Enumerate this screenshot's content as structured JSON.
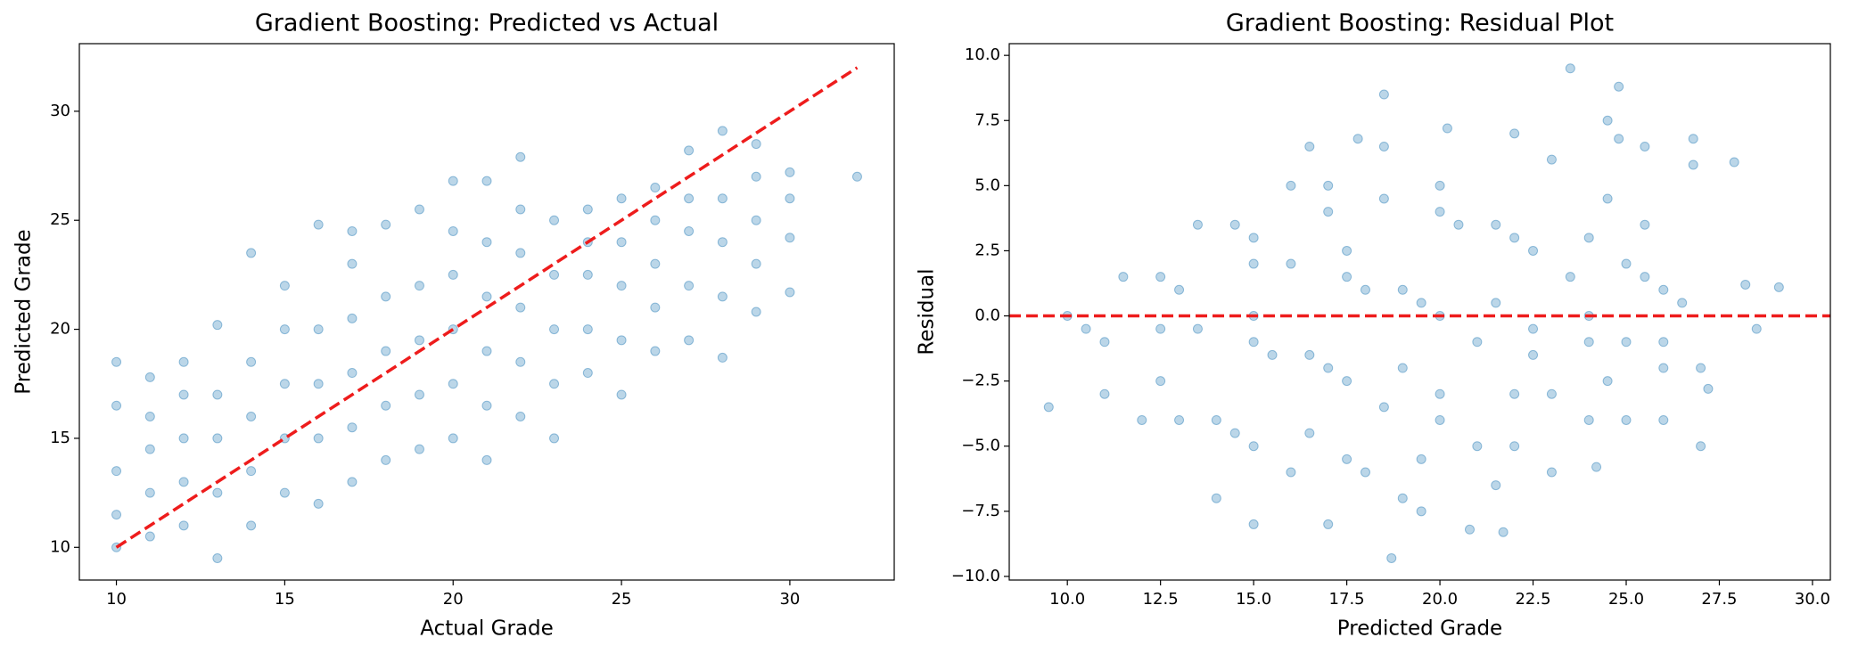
{
  "chart_data": [
    {
      "type": "scatter",
      "title": "Gradient Boosting: Predicted vs Actual",
      "x_label": "Actual Grade",
      "y_label": "Predicted Grade",
      "color": "#1f77b4",
      "xlim": [
        8.9,
        33.1
      ],
      "ylim": [
        8.5,
        33.1
      ],
      "xticks": [
        10,
        15,
        20,
        25,
        30
      ],
      "yticks": [
        10,
        15,
        20,
        25,
        30
      ],
      "reference_line": {
        "x": [
          10,
          32
        ],
        "y": [
          10,
          32
        ],
        "color": "#ee1c1c"
      },
      "x": [
        10,
        10,
        10,
        10,
        10,
        11,
        11,
        11,
        11,
        11,
        12,
        12,
        12,
        12,
        12,
        13,
        13,
        13,
        13,
        13,
        14,
        14,
        14,
        14,
        14,
        15,
        15,
        15,
        15,
        15,
        16,
        16,
        16,
        16,
        16,
        17,
        17,
        17,
        17,
        17,
        17,
        18,
        18,
        18,
        18,
        18,
        19,
        19,
        19,
        19,
        19,
        20,
        20,
        20,
        20,
        20,
        20,
        21,
        21,
        21,
        21,
        21,
        21,
        22,
        22,
        22,
        22,
        22,
        22,
        23,
        23,
        23,
        23,
        23,
        24,
        24,
        24,
        24,
        24,
        25,
        25,
        25,
        25,
        25,
        26,
        26,
        26,
        26,
        26,
        27,
        27,
        27,
        27,
        27,
        28,
        28,
        28,
        28,
        28,
        29,
        29,
        29,
        29,
        29,
        30,
        30,
        30,
        30,
        32
      ],
      "y": [
        10.0,
        11.5,
        13.5,
        16.5,
        18.5,
        10.5,
        12.5,
        14.5,
        16,
        17.8,
        11,
        13,
        15,
        17,
        18.5,
        9.5,
        12.5,
        15,
        17,
        20.2,
        11,
        13.5,
        16,
        18.5,
        23.5,
        12.5,
        15,
        17.5,
        20,
        22,
        12,
        15,
        17.5,
        20,
        24.8,
        13,
        15.5,
        18,
        20.5,
        23,
        24.5,
        14,
        16.5,
        19,
        21.5,
        24.8,
        14.5,
        17,
        19.5,
        22,
        25.5,
        15,
        17.5,
        20,
        22.5,
        24.5,
        26.8,
        14,
        16.5,
        19,
        21.5,
        24,
        26.8,
        16,
        18.5,
        21,
        23.5,
        25.5,
        27.9,
        15,
        17.5,
        20,
        22.5,
        25,
        18,
        20,
        22.5,
        24,
        25.5,
        17,
        19.5,
        22,
        24,
        26,
        19,
        21,
        23,
        25,
        26.5,
        19.5,
        22,
        24.5,
        26,
        28.2,
        18.7,
        21.5,
        24,
        26,
        29.1,
        20.8,
        23,
        25,
        27,
        28.5,
        21.7,
        24.2,
        26,
        27.2,
        27
      ]
    },
    {
      "type": "scatter",
      "title": "Gradient Boosting: Residual Plot",
      "x_label": "Predicted Grade",
      "y_label": "Residual",
      "color": "#1f77b4",
      "xlim": [
        8.44,
        30.48
      ],
      "ylim": [
        -10.14,
        10.45
      ],
      "xticks": [
        {
          "value": 10,
          "label": "10.0"
        },
        {
          "value": 12.5,
          "label": "12.5"
        },
        {
          "value": 15,
          "label": "15.0"
        },
        {
          "value": 17.5,
          "label": "17.5"
        },
        {
          "value": 20,
          "label": "20.0"
        },
        {
          "value": 22.5,
          "label": "22.5"
        },
        {
          "value": 25,
          "label": "25.0"
        },
        {
          "value": 27.5,
          "label": "27.5"
        },
        {
          "value": 30,
          "label": "30.0"
        }
      ],
      "yticks": [
        {
          "value": -10,
          "label": "−10.0"
        },
        {
          "value": -7.5,
          "label": "−7.5"
        },
        {
          "value": -5,
          "label": "−5.0"
        },
        {
          "value": -2.5,
          "label": "−2.5"
        },
        {
          "value": 0,
          "label": "0.0"
        },
        {
          "value": 2.5,
          "label": "2.5"
        },
        {
          "value": 5,
          "label": "5.0"
        },
        {
          "value": 7.5,
          "label": "7.5"
        },
        {
          "value": 10,
          "label": "10.0"
        }
      ],
      "reference_line": {
        "y": 0,
        "color": "#ee1c1c"
      },
      "x": [
        10.0,
        11.5,
        13.5,
        16.5,
        18.5,
        10.5,
        12.5,
        14.5,
        16,
        17.8,
        11,
        13,
        15,
        17,
        18.5,
        9.5,
        12.5,
        15,
        17,
        20.2,
        11,
        13.5,
        16,
        18.5,
        23.5,
        12.5,
        15,
        17.5,
        20,
        22,
        12,
        15,
        17.5,
        20,
        24.8,
        13,
        15.5,
        18,
        20.5,
        23,
        24.5,
        14,
        16.5,
        19,
        21.5,
        24.8,
        14.5,
        17,
        19.5,
        22,
        25.5,
        15,
        17.5,
        20,
        22.5,
        24.5,
        26.8,
        14,
        16.5,
        19,
        21.5,
        24,
        26.8,
        16,
        18.5,
        21,
        23.5,
        25.5,
        27.9,
        15,
        17.5,
        20,
        22.5,
        25,
        18,
        20,
        22.5,
        24,
        25.5,
        17,
        19.5,
        22,
        24,
        26,
        19,
        21,
        23,
        25,
        26.5,
        19.5,
        22,
        24.5,
        26,
        28.2,
        18.7,
        21.5,
        24,
        26,
        29.1,
        20.8,
        23,
        25,
        27,
        28.5,
        21.7,
        24.2,
        26,
        27.2,
        27
      ],
      "y": [
        0,
        1.5,
        3.5,
        6.5,
        8.5,
        -0.5,
        1.5,
        3.5,
        5,
        6.8,
        -1,
        1,
        3,
        5,
        6.5,
        -3.5,
        -0.5,
        2,
        4,
        7.2,
        -3,
        -0.5,
        2,
        4.5,
        9.5,
        -2.5,
        0,
        2.5,
        5,
        7,
        -4,
        -1,
        1.5,
        4,
        8.8,
        -4,
        -1.5,
        1,
        3.5,
        6,
        7.5,
        -4,
        -1.5,
        1,
        3.5,
        6.8,
        -4.5,
        -2,
        0.5,
        3,
        6.5,
        -5,
        -2.5,
        0,
        2.5,
        4.5,
        6.8,
        -7,
        -4.5,
        -2,
        0.5,
        3,
        5.8,
        -6,
        -3.5,
        -1,
        1.5,
        3.5,
        5.9,
        -8,
        -5.5,
        -3,
        -0.5,
        2,
        -6,
        -4,
        -1.5,
        0,
        1.5,
        -8,
        -5.5,
        -3,
        -1,
        1,
        -7,
        -5,
        -3,
        -1,
        0.5,
        -7.5,
        -5,
        -2.5,
        -1,
        1.2,
        -9.3,
        -6.5,
        -4,
        -2,
        1.1,
        -8.2,
        -6,
        -4,
        -2,
        -0.5,
        -8.3,
        -5.8,
        -4,
        -2.8,
        -5
      ]
    }
  ]
}
